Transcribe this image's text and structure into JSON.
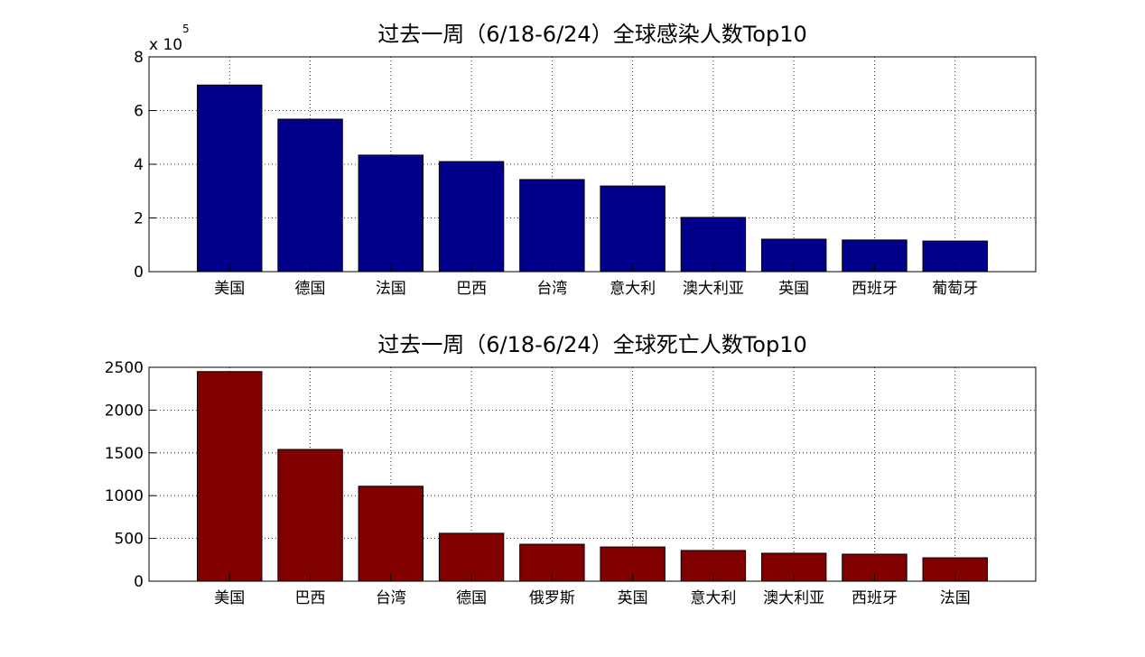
{
  "chart_data": [
    {
      "type": "bar",
      "title": "过去一周（6/18-6/24）全球感染人数Top10",
      "y_multiplier": "x 10",
      "y_multiplier_exponent": "5",
      "categories": [
        "美国",
        "德国",
        "法国",
        "巴西",
        "台湾",
        "意大利",
        "澳大利亚",
        "英国",
        "西班牙",
        "葡萄牙"
      ],
      "values": [
        6.95,
        5.68,
        4.34,
        4.1,
        3.43,
        3.19,
        2.02,
        1.21,
        1.18,
        1.14
      ],
      "color": "#00008b",
      "ylim": [
        0,
        8
      ],
      "yticks": [
        0,
        2,
        4,
        6,
        8
      ],
      "grid": true
    },
    {
      "type": "bar",
      "title": "过去一周（6/18-6/24）全球死亡人数Top10",
      "categories": [
        "美国",
        "巴西",
        "台湾",
        "德国",
        "俄罗斯",
        "英国",
        "意大利",
        "澳大利亚",
        "西班牙",
        "法国"
      ],
      "values": [
        2450,
        1540,
        1110,
        560,
        432,
        400,
        359,
        327,
        316,
        274
      ],
      "color": "#800000",
      "ylim": [
        0,
        2500
      ],
      "yticks": [
        0,
        500,
        1000,
        1500,
        2000,
        2500
      ],
      "grid": true
    }
  ]
}
